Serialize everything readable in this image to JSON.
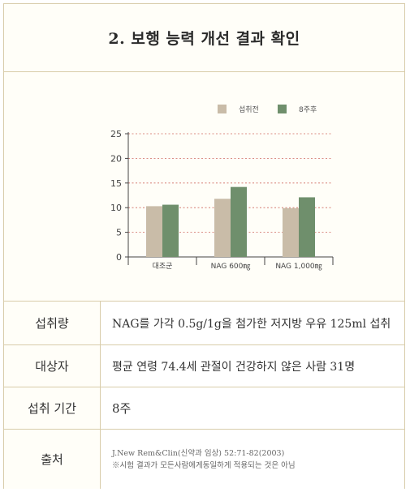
{
  "title": "2. 보행 능력 개선 결과 확인",
  "chart_data": {
    "type": "bar",
    "categories": [
      "대조군",
      "NAG 600㎎",
      "NAG 1,000㎎"
    ],
    "series": [
      {
        "name": "섭취전",
        "values": [
          10.3,
          11.8,
          9.9
        ],
        "color": "#c9bca8"
      },
      {
        "name": "8주후",
        "values": [
          10.6,
          14.2,
          12.1
        ],
        "color": "#6f8f6c"
      }
    ],
    "yticks": [
      0,
      5,
      10,
      15,
      20,
      25
    ],
    "ylim": [
      0,
      25
    ],
    "grid": "dotted horizontal",
    "legend_position": "top-right"
  },
  "info": {
    "rows": [
      {
        "label": "섭취량",
        "value": "NAG를 가각 0.5g/1g을 첨가한 저지방 우유 125ml 섭취"
      },
      {
        "label": "대상자",
        "value": "평균 연령 74.4세 관절이 건강하지 않은 사람 31명"
      },
      {
        "label": "섭취 기간",
        "value": "8주"
      }
    ],
    "source_label": "출처",
    "source_line1": "J.New Rem&Clin(신약과 임상) 52:71-82(2003)",
    "source_line2": "※시험 결과가 모든사람에게동일하게 적용되는 것은 아님"
  }
}
